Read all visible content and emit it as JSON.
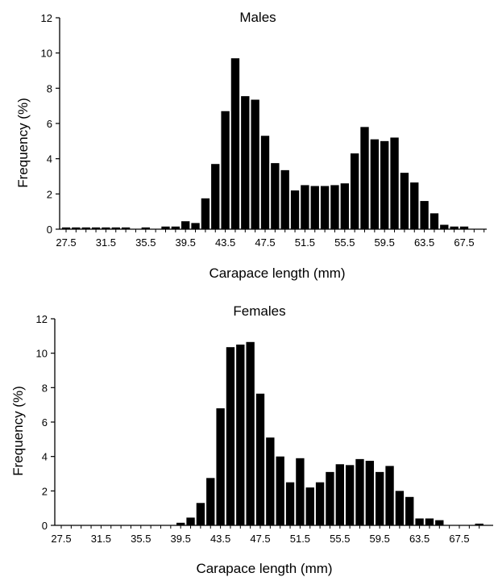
{
  "chart_data": [
    {
      "type": "bar",
      "title": "Males",
      "xlabel": "Carapace length (mm)",
      "ylabel": "Frequency (%)",
      "ylim": [
        0,
        12
      ],
      "yticks": [
        "0",
        "2",
        "4",
        "6",
        "8",
        "10",
        "12"
      ],
      "x_tick_labels": [
        "27.5",
        "31.5",
        "35.5",
        "39.5",
        "43.5",
        "47.5",
        "51.5",
        "55.5",
        "59.5",
        "63.5",
        "67.5"
      ],
      "x": [
        27.5,
        28.5,
        29.5,
        30.5,
        31.5,
        32.5,
        33.5,
        34.5,
        35.5,
        36.5,
        37.5,
        38.5,
        39.5,
        40.5,
        41.5,
        42.5,
        43.5,
        44.5,
        45.5,
        46.5,
        47.5,
        48.5,
        49.5,
        50.5,
        51.5,
        52.5,
        53.5,
        54.5,
        55.5,
        56.5,
        57.5,
        58.5,
        59.5,
        60.5,
        61.5,
        62.5,
        63.5,
        64.5,
        65.5,
        66.5,
        67.5,
        68.5,
        69.5
      ],
      "values": [
        0.1,
        0.1,
        0.1,
        0.1,
        0.1,
        0.1,
        0.1,
        0,
        0.1,
        0,
        0.15,
        0.15,
        0.45,
        0.35,
        1.75,
        3.7,
        6.7,
        9.7,
        7.55,
        7.35,
        5.3,
        3.75,
        3.35,
        2.2,
        2.5,
        2.45,
        2.45,
        2.5,
        2.6,
        4.3,
        5.8,
        5.1,
        5.0,
        5.2,
        3.2,
        2.65,
        1.6,
        0.9,
        0.25,
        0.15,
        0.15,
        0,
        0
      ],
      "grid": false,
      "bar_color": "#000000"
    },
    {
      "type": "bar",
      "title": "Females",
      "xlabel": "Carapace length (mm)",
      "ylabel": "Frequency (%)",
      "ylim": [
        0,
        12
      ],
      "yticks": [
        "0",
        "2",
        "4",
        "6",
        "8",
        "10",
        "12"
      ],
      "x_tick_labels": [
        "27.5",
        "31.5",
        "35.5",
        "39.5",
        "43.5",
        "47.5",
        "51.5",
        "55.5",
        "59.5",
        "63.5",
        "67.5"
      ],
      "x": [
        27.5,
        28.5,
        29.5,
        30.5,
        31.5,
        32.5,
        33.5,
        34.5,
        35.5,
        36.5,
        37.5,
        38.5,
        39.5,
        40.5,
        41.5,
        42.5,
        43.5,
        44.5,
        45.5,
        46.5,
        47.5,
        48.5,
        49.5,
        50.5,
        51.5,
        52.5,
        53.5,
        54.5,
        55.5,
        56.5,
        57.5,
        58.5,
        59.5,
        60.5,
        61.5,
        62.5,
        63.5,
        64.5,
        65.5,
        66.5,
        67.5,
        68.5,
        69.5
      ],
      "values": [
        0,
        0,
        0,
        0,
        0,
        0,
        0,
        0,
        0,
        0,
        0,
        0,
        0.15,
        0.45,
        1.3,
        2.75,
        6.8,
        10.35,
        10.5,
        10.65,
        7.65,
        5.1,
        4.0,
        2.5,
        3.9,
        2.2,
        2.5,
        3.1,
        3.55,
        3.5,
        3.85,
        3.75,
        3.1,
        3.45,
        2.0,
        1.65,
        0.4,
        0.4,
        0.3,
        0,
        0,
        0,
        0.1
      ],
      "grid": false,
      "bar_color": "#000000"
    }
  ]
}
